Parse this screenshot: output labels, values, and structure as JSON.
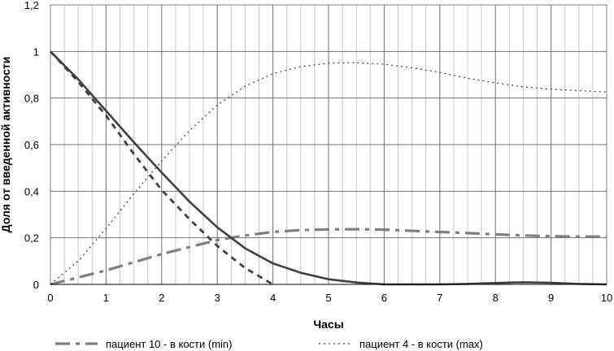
{
  "chart_data": {
    "type": "line",
    "xlabel": "Часы",
    "ylabel": "Доля от введенной активности",
    "xlim": [
      0,
      10
    ],
    "ylim": [
      0,
      1.2
    ],
    "x_ticks": [
      0,
      1,
      2,
      3,
      4,
      5,
      6,
      7,
      8,
      9,
      10
    ],
    "x_tick_labels": [
      "0",
      "1",
      "2",
      "3",
      "4",
      "5",
      "6",
      "7",
      "8",
      "9",
      "10"
    ],
    "y_ticks": [
      0,
      0.2,
      0.4,
      0.6,
      0.8,
      1,
      1.2
    ],
    "y_tick_labels": [
      "0",
      "0,2",
      "0,4",
      "0,6",
      "0,8",
      "1",
      "1,2"
    ],
    "grid": true,
    "legend_position": "bottom",
    "series": [
      {
        "name": "пациент 10 - в кости (min)",
        "color": "#7f7f7f",
        "style": "dash-dot",
        "points": [
          [
            0,
            0
          ],
          [
            0.5,
            0.03
          ],
          [
            1,
            0.06
          ],
          [
            1.5,
            0.095
          ],
          [
            2,
            0.13
          ],
          [
            2.5,
            0.16
          ],
          [
            3,
            0.19
          ],
          [
            3.5,
            0.21
          ],
          [
            4,
            0.225
          ],
          [
            4.5,
            0.233
          ],
          [
            5,
            0.236
          ],
          [
            5.5,
            0.237
          ],
          [
            6,
            0.235
          ],
          [
            6.5,
            0.23
          ],
          [
            7,
            0.225
          ],
          [
            7.5,
            0.22
          ],
          [
            8,
            0.215
          ],
          [
            8.5,
            0.21
          ],
          [
            9,
            0.207
          ],
          [
            9.5,
            0.205
          ],
          [
            10,
            0.205
          ]
        ]
      },
      {
        "name": "пациент 4 - в кости (max)",
        "color": "#404040",
        "style": "dotted",
        "points": [
          [
            0,
            0
          ],
          [
            0.5,
            0.1
          ],
          [
            1,
            0.24
          ],
          [
            1.5,
            0.39
          ],
          [
            2,
            0.53
          ],
          [
            2.5,
            0.66
          ],
          [
            3,
            0.77
          ],
          [
            3.5,
            0.85
          ],
          [
            4,
            0.905
          ],
          [
            4.5,
            0.935
          ],
          [
            5,
            0.95
          ],
          [
            5.5,
            0.952
          ],
          [
            6,
            0.945
          ],
          [
            6.5,
            0.93
          ],
          [
            7,
            0.91
          ],
          [
            7.5,
            0.885
          ],
          [
            8,
            0.865
          ],
          [
            8.5,
            0.848
          ],
          [
            9,
            0.838
          ],
          [
            9.5,
            0.832
          ],
          [
            10,
            0.826
          ]
        ]
      },
      {
        "name": "",
        "color": "#404040",
        "style": "solid",
        "points": [
          [
            0,
            1
          ],
          [
            0.5,
            0.88
          ],
          [
            1,
            0.745
          ],
          [
            1.5,
            0.61
          ],
          [
            2,
            0.48
          ],
          [
            2.5,
            0.355
          ],
          [
            3,
            0.245
          ],
          [
            3.5,
            0.155
          ],
          [
            4,
            0.09
          ],
          [
            4.5,
            0.05
          ],
          [
            5,
            0.022
          ],
          [
            5.5,
            0.008
          ],
          [
            6,
            0
          ],
          [
            7,
            0
          ],
          [
            7.5,
            0.002
          ],
          [
            8,
            0.006
          ],
          [
            8.5,
            0.009
          ],
          [
            9,
            0.007
          ],
          [
            9.5,
            0.002
          ],
          [
            10,
            0
          ]
        ]
      },
      {
        "name": "",
        "color": "#404040",
        "style": "dashed",
        "points": [
          [
            0,
            1
          ],
          [
            0.5,
            0.87
          ],
          [
            1,
            0.725
          ],
          [
            1.5,
            0.56
          ],
          [
            2,
            0.405
          ],
          [
            2.5,
            0.28
          ],
          [
            3,
            0.165
          ],
          [
            3.5,
            0.07
          ],
          [
            4,
            0
          ]
        ]
      }
    ]
  },
  "legend": [
    {
      "label": "пациент 10 - в кости (min)",
      "color": "#7f7f7f",
      "style": "dash-dot"
    },
    {
      "label": "пациент 4 - в кости (max)",
      "color": "#404040",
      "style": "dotted"
    }
  ]
}
